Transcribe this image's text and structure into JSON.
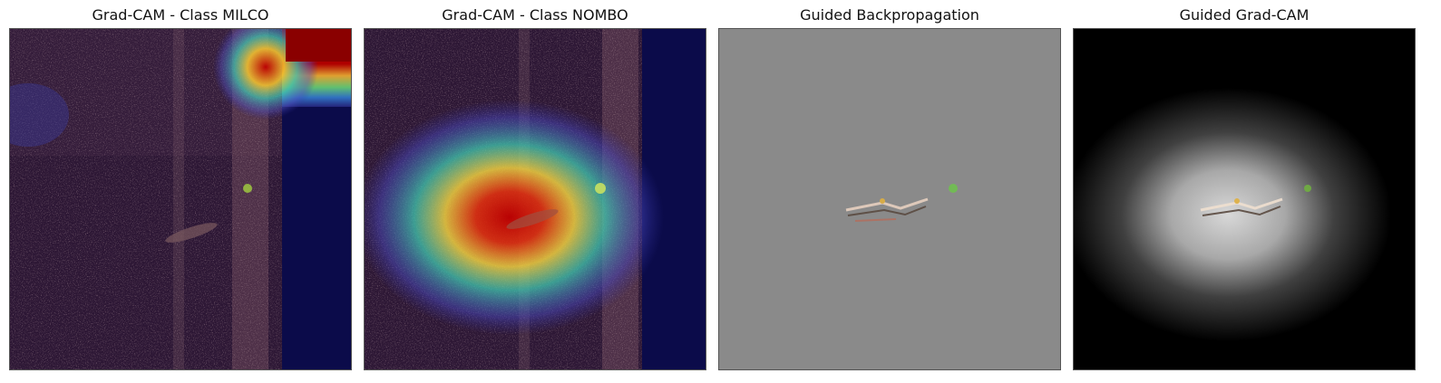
{
  "panels": [
    {
      "title": "Grad-CAM - Class MILCO",
      "kind": "gradcam-overlay"
    },
    {
      "title": "Grad-CAM - Class NOMBO",
      "kind": "gradcam-overlay"
    },
    {
      "title": "Guided Backpropagation",
      "kind": "guided-backprop"
    },
    {
      "title": "Guided Grad-CAM",
      "kind": "guided-gradcam"
    }
  ],
  "colors": {
    "sonar_dark": "#2b1733",
    "sonar_band": "#6a4658",
    "gray_background": "#8a8a8a",
    "black_background": "#000000",
    "heat_red": "#b00000",
    "heat_yellow": "#f2d53a",
    "heat_cyan": "#39c6b0",
    "heat_blue": "#2a2a9a"
  }
}
